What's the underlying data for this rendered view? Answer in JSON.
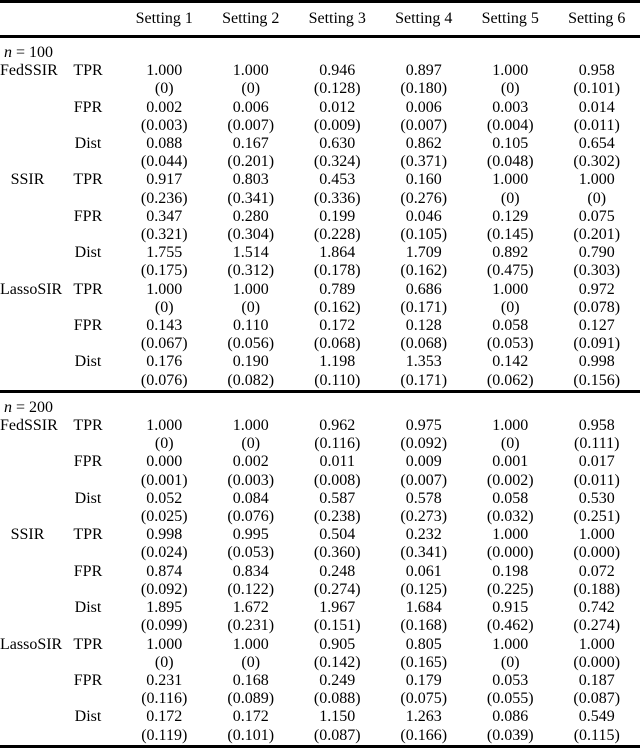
{
  "table": {
    "column_headers": [
      "Setting 1",
      "Setting 2",
      "Setting 3",
      "Setting 4",
      "Setting 5",
      "Setting 6"
    ],
    "sections": [
      {
        "label": {
          "var": "n",
          "eq": " = 100"
        },
        "rows": [
          {
            "method": "FedSSIR",
            "metric": "TPR",
            "values": [
              "1.000",
              "1.000",
              "0.946",
              "0.897",
              "1.000",
              "0.958"
            ],
            "sds": [
              "(0)",
              "(0)",
              "(0.128)",
              "(0.180)",
              "(0)",
              "(0.101)"
            ]
          },
          {
            "method": "",
            "metric": "FPR",
            "values": [
              "0.002",
              "0.006",
              "0.012",
              "0.006",
              "0.003",
              "0.014"
            ],
            "sds": [
              "(0.003)",
              "(0.007)",
              "(0.009)",
              "(0.007)",
              "(0.004)",
              "(0.011)"
            ]
          },
          {
            "method": "",
            "metric": "Dist",
            "values": [
              "0.088",
              "0.167",
              "0.630",
              "0.862",
              "0.105",
              "0.654"
            ],
            "sds": [
              "(0.044)",
              "(0.201)",
              "(0.324)",
              "(0.371)",
              "(0.048)",
              "(0.302)"
            ]
          },
          {
            "method": "SSIR",
            "metric": "TPR",
            "values": [
              "0.917",
              "0.803",
              "0.453",
              "0.160",
              "1.000",
              "1.000"
            ],
            "sds": [
              "(0.236)",
              "(0.341)",
              "(0.336)",
              "(0.276)",
              "(0)",
              "(0)"
            ]
          },
          {
            "method": "",
            "metric": "FPR",
            "values": [
              "0.347",
              "0.280",
              "0.199",
              "0.046",
              "0.129",
              "0.075"
            ],
            "sds": [
              "(0.321)",
              "(0.304)",
              "(0.228)",
              "(0.105)",
              "(0.145)",
              "(0.201)"
            ]
          },
          {
            "method": "",
            "metric": "Dist",
            "values": [
              "1.755",
              "1.514",
              "1.864",
              "1.709",
              "0.892",
              "0.790"
            ],
            "sds": [
              "(0.175)",
              "(0.312)",
              "(0.178)",
              "(0.162)",
              "(0.475)",
              "(0.303)"
            ]
          },
          {
            "method": "LassoSIR",
            "metric": "TPR",
            "values": [
              "1.000",
              "1.000",
              "0.789",
              "0.686",
              "1.000",
              "0.972"
            ],
            "sds": [
              "(0)",
              "(0)",
              "(0.162)",
              "(0.171)",
              "(0)",
              "(0.078)"
            ]
          },
          {
            "method": "",
            "metric": "FPR",
            "values": [
              "0.143",
              "0.110",
              "0.172",
              "0.128",
              "0.058",
              "0.127"
            ],
            "sds": [
              "(0.067)",
              "(0.056)",
              "(0.068)",
              "(0.068)",
              "(0.053)",
              "(0.091)"
            ]
          },
          {
            "method": "",
            "metric": "Dist",
            "values": [
              "0.176",
              "0.190",
              "1.198",
              "1.353",
              "0.142",
              "0.998"
            ],
            "sds": [
              "(0.076)",
              "(0.082)",
              "(0.110)",
              "(0.171)",
              "(0.062)",
              "(0.156)"
            ]
          }
        ]
      },
      {
        "label": {
          "var": "n",
          "eq": " = 200"
        },
        "rows": [
          {
            "method": "FedSSIR",
            "metric": "TPR",
            "values": [
              "1.000",
              "1.000",
              "0.962",
              "0.975",
              "1.000",
              "0.958"
            ],
            "sds": [
              "(0)",
              "(0)",
              "(0.116)",
              "(0.092)",
              "(0)",
              "(0.111)"
            ]
          },
          {
            "method": "",
            "metric": "FPR",
            "values": [
              "0.000",
              "0.002",
              "0.011",
              "0.009",
              "0.001",
              "0.017"
            ],
            "sds": [
              "(0.001)",
              "(0.003)",
              "(0.008)",
              "(0.007)",
              "(0.002)",
              "(0.011)"
            ]
          },
          {
            "method": "",
            "metric": "Dist",
            "values": [
              "0.052",
              "0.084",
              "0.587",
              "0.578",
              "0.058",
              "0.530"
            ],
            "sds": [
              "(0.025)",
              "(0.076)",
              "(0.238)",
              "(0.273)",
              "(0.032)",
              "(0.251)"
            ]
          },
          {
            "method": "SSIR",
            "metric": "TPR",
            "values": [
              "0.998",
              "0.995",
              "0.504",
              "0.232",
              "1.000",
              "1.000"
            ],
            "sds": [
              "(0.024)",
              "(0.053)",
              "(0.360)",
              "(0.341)",
              "(0.000)",
              "(0.000)"
            ]
          },
          {
            "method": "",
            "metric": "FPR",
            "values": [
              "0.874",
              "0.834",
              "0.248",
              "0.061",
              "0.198",
              "0.072"
            ],
            "sds": [
              "(0.092)",
              "(0.122)",
              "(0.274)",
              "(0.125)",
              "(0.225)",
              "(0.188)"
            ]
          },
          {
            "method": "",
            "metric": "Dist",
            "values": [
              "1.895",
              "1.672",
              "1.967",
              "1.684",
              "0.915",
              "0.742"
            ],
            "sds": [
              "(0.099)",
              "(0.231)",
              "(0.151)",
              "(0.168)",
              "(0.462)",
              "(0.274)"
            ]
          },
          {
            "method": "LassoSIR",
            "metric": "TPR",
            "values": [
              "1.000",
              "1.000",
              "0.905",
              "0.805",
              "1.000",
              "1.000"
            ],
            "sds": [
              "(0)",
              "(0)",
              "(0.142)",
              "(0.165)",
              "(0)",
              "(0.000)"
            ]
          },
          {
            "method": "",
            "metric": "FPR",
            "values": [
              "0.231",
              "0.168",
              "0.249",
              "0.179",
              "0.053",
              "0.187"
            ],
            "sds": [
              "(0.116)",
              "(0.089)",
              "(0.088)",
              "(0.075)",
              "(0.055)",
              "(0.087)"
            ]
          },
          {
            "method": "",
            "metric": "Dist",
            "values": [
              "0.172",
              "0.172",
              "1.150",
              "1.263",
              "0.086",
              "0.549"
            ],
            "sds": [
              "(0.119)",
              "(0.101)",
              "(0.087)",
              "(0.166)",
              "(0.039)",
              "(0.115)"
            ]
          }
        ]
      }
    ]
  }
}
